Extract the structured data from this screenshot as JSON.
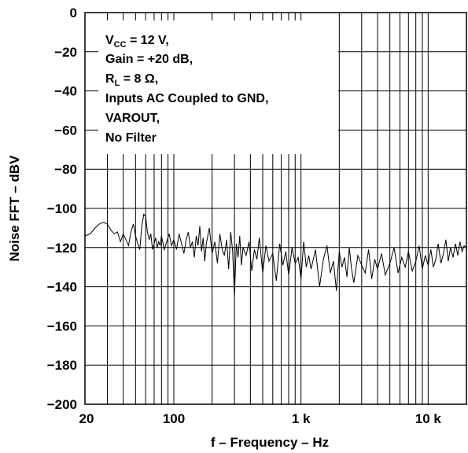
{
  "chart_data": {
    "type": "line",
    "title": "",
    "xlabel": "f – Frequency – Hz",
    "ylabel": "Noise FFT – dBV",
    "x_scale": "log",
    "xlim": [
      20,
      20000
    ],
    "ylim": [
      -200,
      0
    ],
    "grid": true,
    "x_ticks": [
      {
        "value": 20,
        "label": "20"
      },
      {
        "value": 100,
        "label": "100"
      },
      {
        "value": 1000,
        "label": "1 k"
      },
      {
        "value": 10000,
        "label": "10 k"
      }
    ],
    "y_ticks": [
      {
        "value": 0,
        "label": "0"
      },
      {
        "value": -20,
        "label": "−20"
      },
      {
        "value": -40,
        "label": "−40"
      },
      {
        "value": -60,
        "label": "−60"
      },
      {
        "value": -80,
        "label": "−80"
      },
      {
        "value": -100,
        "label": "−100"
      },
      {
        "value": -120,
        "label": "−120"
      },
      {
        "value": -140,
        "label": "−140"
      },
      {
        "value": -160,
        "label": "−160"
      },
      {
        "value": -180,
        "label": "−180"
      },
      {
        "value": -200,
        "label": "−200"
      }
    ],
    "annotations": {
      "vcc_prefix": "V",
      "vcc_sub": "CC",
      "vcc_rest": " = 12 V,",
      "gain": "Gain = +20 dB,",
      "rl_prefix": "R",
      "rl_sub": "L",
      "rl_rest": " = 8 Ω,",
      "inputs": "Inputs AC Coupled to GND,",
      "varout": "VAROUT,",
      "filter": "No Filter"
    },
    "series": [
      {
        "x": [
          20,
          22,
          24,
          26,
          28,
          30,
          32,
          34,
          36,
          38,
          40,
          42,
          44,
          46,
          48,
          50,
          52,
          54,
          56,
          58,
          60,
          62,
          64,
          66,
          68,
          70,
          72,
          74,
          76,
          78,
          80,
          84,
          88,
          92,
          96,
          100,
          105,
          110,
          115,
          120,
          125,
          130,
          135,
          140,
          145,
          150,
          155,
          160,
          165,
          170,
          175,
          180,
          190,
          200,
          210,
          220,
          230,
          240,
          250,
          260,
          270,
          280,
          290,
          300,
          310,
          320,
          330,
          340,
          350,
          370,
          390,
          410,
          430,
          450,
          470,
          500,
          530,
          560,
          600,
          640,
          680,
          720,
          760,
          800,
          850,
          900,
          950,
          1000,
          1050,
          1100,
          1150,
          1200,
          1300,
          1400,
          1500,
          1600,
          1700,
          1800,
          1900,
          2000,
          2100,
          2200,
          2300,
          2400,
          2500,
          2600,
          2800,
          3000,
          3200,
          3400,
          3600,
          3800,
          4000,
          4300,
          4600,
          5000,
          5400,
          5800,
          6200,
          6600,
          7000,
          7500,
          8000,
          8500,
          9000,
          9500,
          10000,
          10500,
          11000,
          11500,
          12000,
          12600,
          13200,
          13800,
          14400,
          15000,
          15700,
          16400,
          17100,
          17800,
          18500,
          19200,
          20000
        ],
        "values": [
          -114,
          -113,
          -110,
          -108,
          -107,
          -108,
          -111,
          -113,
          -112,
          -117,
          -113,
          -116,
          -119,
          -112,
          -108,
          -114,
          -118,
          -121,
          -109,
          -103,
          -104,
          -112,
          -116,
          -113,
          -121,
          -118,
          -115,
          -120,
          -117,
          -119,
          -114,
          -121,
          -117,
          -113,
          -119,
          -116,
          -121,
          -113,
          -118,
          -123,
          -116,
          -112,
          -120,
          -117,
          -125,
          -114,
          -119,
          -109,
          -122,
          -115,
          -127,
          -118,
          -110,
          -123,
          -117,
          -128,
          -113,
          -121,
          -124,
          -116,
          -131,
          -112,
          -122,
          -145,
          -118,
          -125,
          -114,
          -129,
          -120,
          -124,
          -117,
          -132,
          -121,
          -126,
          -115,
          -133,
          -119,
          -127,
          -123,
          -137,
          -118,
          -129,
          -122,
          -134,
          -120,
          -128,
          -125,
          -136,
          -117,
          -130,
          -124,
          -131,
          -121,
          -140,
          -126,
          -119,
          -133,
          -127,
          -142,
          -122,
          -130,
          -125,
          -135,
          -120,
          -131,
          -138,
          -124,
          -129,
          -133,
          -121,
          -136,
          -126,
          -131,
          -123,
          -134,
          -128,
          -120,
          -133,
          -125,
          -130,
          -122,
          -132,
          -127,
          -119,
          -131,
          -124,
          -129,
          -121,
          -130,
          -126,
          -118,
          -128,
          -123,
          -116,
          -127,
          -120,
          -125,
          -118,
          -124,
          -117,
          -122,
          -119,
          -120
        ]
      }
    ]
  }
}
